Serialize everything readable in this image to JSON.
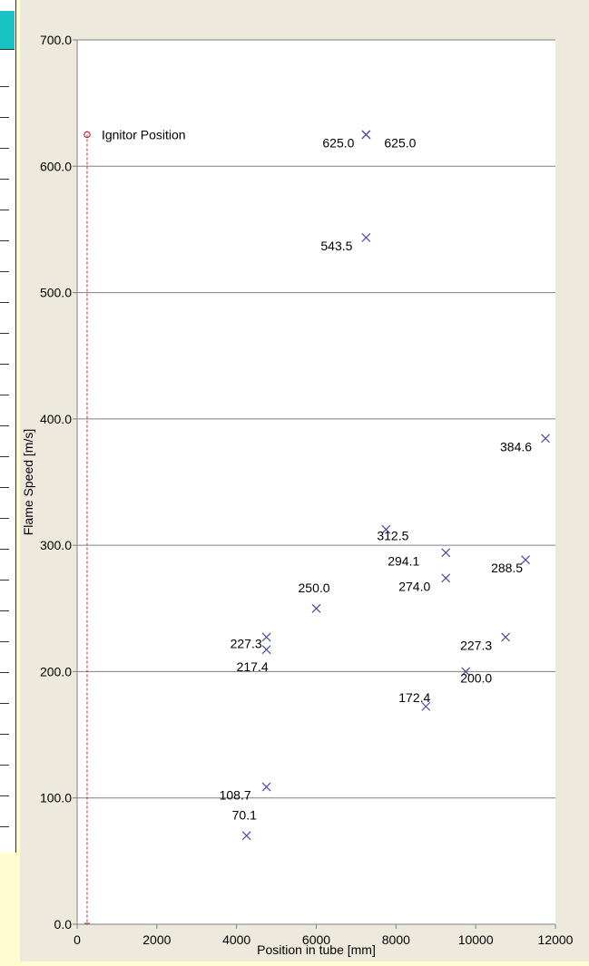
{
  "chart_data": {
    "type": "scatter",
    "xlabel": "Position in tube [mm]",
    "ylabel": "Flame Speed [m/s]",
    "xlim": [
      0,
      12000
    ],
    "ylim": [
      0,
      700
    ],
    "x_ticks": [
      0,
      2000,
      4000,
      6000,
      8000,
      10000,
      12000
    ],
    "y_ticks": [
      "0.0",
      "100.0",
      "200.0",
      "300.0",
      "400.0",
      "500.0",
      "600.0",
      "700.0"
    ],
    "grid": "horizontal",
    "ignitor": {
      "label": "Ignitor Position",
      "x": 250,
      "y": 625
    },
    "points": [
      {
        "x": 7250,
        "y": 625.0,
        "label": "625.0"
      },
      {
        "x": 7250,
        "y": 625.0,
        "label": "625.0"
      },
      {
        "x": 7250,
        "y": 543.5,
        "label": "543.5"
      },
      {
        "x": 11750,
        "y": 384.6,
        "label": "384.6"
      },
      {
        "x": 7750,
        "y": 312.5,
        "label": "312.5"
      },
      {
        "x": 9250,
        "y": 294.1,
        "label": "294.1"
      },
      {
        "x": 11250,
        "y": 288.5,
        "label": "288.5"
      },
      {
        "x": 9250,
        "y": 274.0,
        "label": "274.0"
      },
      {
        "x": 6000,
        "y": 250.0,
        "label": "250.0"
      },
      {
        "x": 4750,
        "y": 227.3,
        "label": "227.3"
      },
      {
        "x": 4750,
        "y": 217.4,
        "label": "217.4"
      },
      {
        "x": 10750,
        "y": 227.3,
        "label": "227.3"
      },
      {
        "x": 9750,
        "y": 200.0,
        "label": "200.0"
      },
      {
        "x": 8750,
        "y": 172.4,
        "label": "172.4"
      },
      {
        "x": 4750,
        "y": 108.7,
        "label": "108.7"
      },
      {
        "x": 4250,
        "y": 70.1,
        "label": "70.1"
      }
    ],
    "colors": {
      "marker": "#4a4aa0",
      "ignitor": "#c0313b",
      "grid": "#808080"
    }
  }
}
